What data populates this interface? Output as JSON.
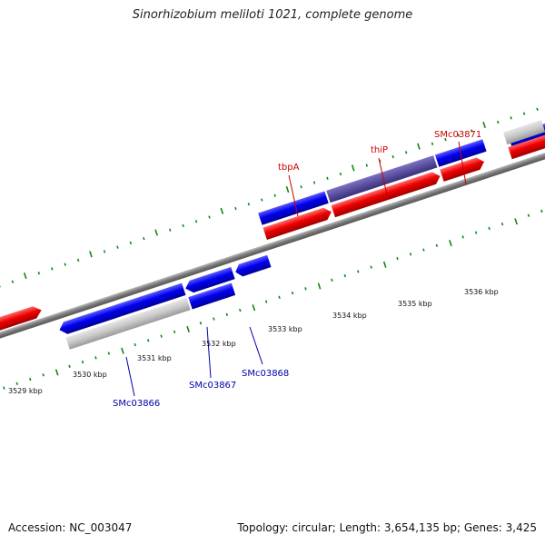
{
  "title": "Sinorhizobium meliloti 1021, complete genome",
  "footer": {
    "accession": "Accession: NC_003047",
    "summary": "Topology: circular; Length: 3,654,135 bp; Genes: 3,425"
  },
  "colors": {
    "forward_gene": "#0000ee",
    "reverse_gene": "#ee0000",
    "other_feature": "#c8c8c8",
    "selected_gene": "#5a4fa0",
    "backbone": "#777777",
    "tick": "#118811",
    "forward_label": "#cc0000",
    "reverse_label": "#0000aa"
  },
  "scale_labels": [
    "3529 kbp",
    "3530 kbp",
    "3531 kbp",
    "3532 kbp",
    "3533 kbp",
    "3534 kbp",
    "3535 kbp",
    "3536 kbp"
  ],
  "gene_labels": {
    "forward": [
      "tbpA",
      "thiP",
      "SMc03871"
    ],
    "reverse": [
      "SMc03866",
      "SMc03867",
      "SMc03868"
    ]
  }
}
